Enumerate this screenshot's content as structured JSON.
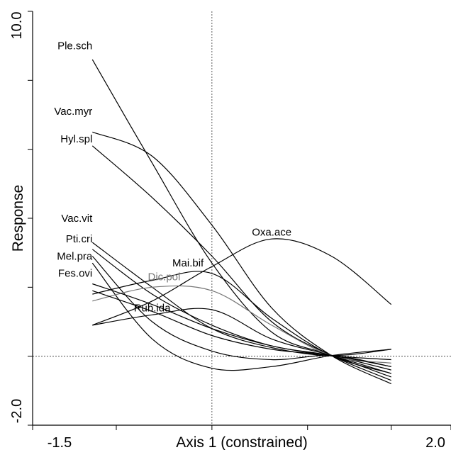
{
  "chart_data": {
    "type": "line",
    "xlabel": "Axis 1 (constrained)",
    "ylabel": "Response",
    "xlim": [
      -1.5,
      2.0
    ],
    "ylim": [
      -2.0,
      10.0
    ],
    "x_tick_labels": [
      "-1.5",
      "2.0"
    ],
    "y_tick_labels": [
      "-2.0",
      "10.0"
    ],
    "x_ticks": [
      -1.5,
      -0.8,
      0.0,
      0.8,
      1.5,
      2.0
    ],
    "y_ticks": [
      -2.0,
      0.0,
      2.0,
      4.0,
      6.0,
      8.0,
      10.0
    ],
    "reference_lines": {
      "x": 0.0,
      "y": 0.0
    },
    "grid": false,
    "x": [
      -1.0,
      -0.5,
      0.0,
      0.5,
      1.0,
      1.5
    ],
    "series": [
      {
        "name": "Ple.sch",
        "color": "#000000",
        "values": [
          8.6,
          5.6,
          2.7,
          0.7,
          0.03,
          -0.6
        ],
        "label_at": [
          -1.0,
          8.9
        ]
      },
      {
        "name": "Vac.myr",
        "color": "#000000",
        "values": [
          6.5,
          5.8,
          3.8,
          1.4,
          0.02,
          -0.8
        ],
        "label_at": [
          -1.0,
          7.0
        ]
      },
      {
        "name": "Hyl.spl",
        "color": "#000000",
        "values": [
          6.1,
          4.6,
          2.9,
          1.0,
          0.02,
          -0.7
        ],
        "label_at": [
          -1.0,
          6.2
        ]
      },
      {
        "name": "Oxa.ace",
        "color": "#000000",
        "values": [
          0.9,
          1.6,
          2.6,
          3.4,
          2.9,
          1.5
        ],
        "label_at": [
          0.5,
          3.5
        ]
      },
      {
        "name": "Vac.vit",
        "color": "#000000",
        "values": [
          3.3,
          2.0,
          0.8,
          0.25,
          0.02,
          0.2
        ],
        "label_at": [
          -1.0,
          3.9
        ]
      },
      {
        "name": "Pti.cri",
        "color": "#000000",
        "values": [
          3.1,
          1.8,
          0.9,
          0.3,
          0.02,
          -0.4
        ],
        "label_at": [
          -1.0,
          3.3
        ]
      },
      {
        "name": "Mel.pra",
        "color": "#000000",
        "values": [
          2.9,
          1.0,
          0.15,
          -0.1,
          0.02,
          -0.3
        ],
        "label_at": [
          -1.0,
          2.8
        ]
      },
      {
        "name": "Fes.ovi",
        "color": "#000000",
        "values": [
          2.7,
          0.5,
          -0.35,
          -0.3,
          0.02,
          0.2
        ],
        "label_at": [
          -1.0,
          2.3
        ]
      },
      {
        "name": "Mai.bif",
        "color": "#000000",
        "values": [
          1.8,
          2.2,
          2.4,
          1.1,
          0.02,
          -0.5
        ],
        "label_at": [
          -0.2,
          2.6
        ]
      },
      {
        "name": "Dic.pol",
        "color": "#777777",
        "values": [
          1.6,
          2.0,
          1.9,
          0.9,
          0.02,
          -0.2
        ],
        "label_at": [
          -0.4,
          2.2
        ]
      },
      {
        "name": "Rub.ida",
        "color": "#000000",
        "values": [
          0.9,
          1.2,
          1.35,
          0.5,
          0.02,
          -0.5
        ],
        "label_at": [
          -0.5,
          1.3
        ]
      },
      {
        "name": "",
        "color": "#000000",
        "values": [
          2.1,
          1.5,
          0.8,
          0.3,
          0.02,
          -0.1
        ],
        "label_at": null
      },
      {
        "name": "",
        "color": "#000000",
        "values": [
          1.9,
          1.3,
          0.6,
          0.2,
          0.02,
          -0.3
        ],
        "label_at": null
      }
    ]
  }
}
